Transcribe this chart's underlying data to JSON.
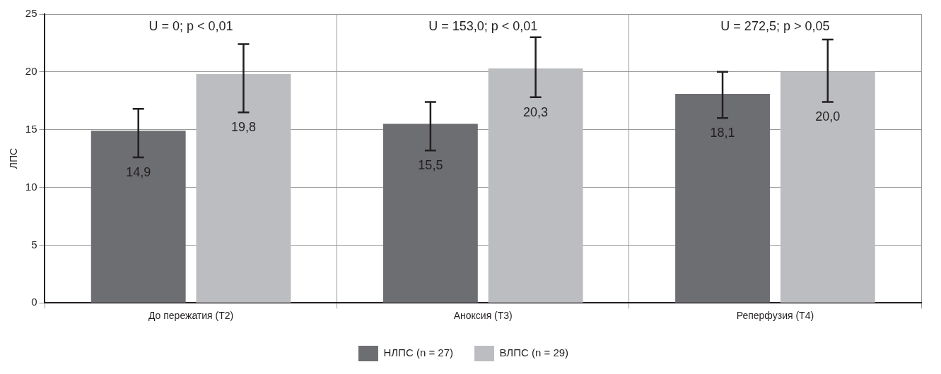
{
  "chart_data": {
    "type": "bar",
    "ylabel": "ЛПС",
    "categories": [
      "До пережатия (T2)",
      "Аноксия (T3)",
      "Реперфузия (T4)"
    ],
    "series": [
      {
        "name": "НЛПС (n = 27)",
        "color": "#6d6e71",
        "values": [
          14.9,
          15.5,
          18.1
        ],
        "value_labels": [
          "14,9",
          "15,5",
          "18,1"
        ],
        "errors": [
          [
            12.6,
            16.8
          ],
          [
            13.2,
            17.4
          ],
          [
            16.0,
            20.0
          ]
        ]
      },
      {
        "name": "ВЛПС (n = 29)",
        "color": "#bcbdc0",
        "values": [
          19.8,
          20.3,
          20.0
        ],
        "value_labels": [
          "19,8",
          "20,3",
          "20,0"
        ],
        "errors": [
          [
            16.5,
            22.4
          ],
          [
            17.8,
            23.0
          ],
          [
            17.4,
            22.8
          ]
        ]
      }
    ],
    "ylim": [
      0,
      25
    ],
    "yticks": [
      0,
      5,
      10,
      15,
      20,
      25
    ],
    "grid": true,
    "legend": "bottom",
    "annotations": [
      "U = 0; p < 0,01",
      "U = 153,0; p < 0,01",
      "U = 272,5; p > 0,05"
    ]
  }
}
